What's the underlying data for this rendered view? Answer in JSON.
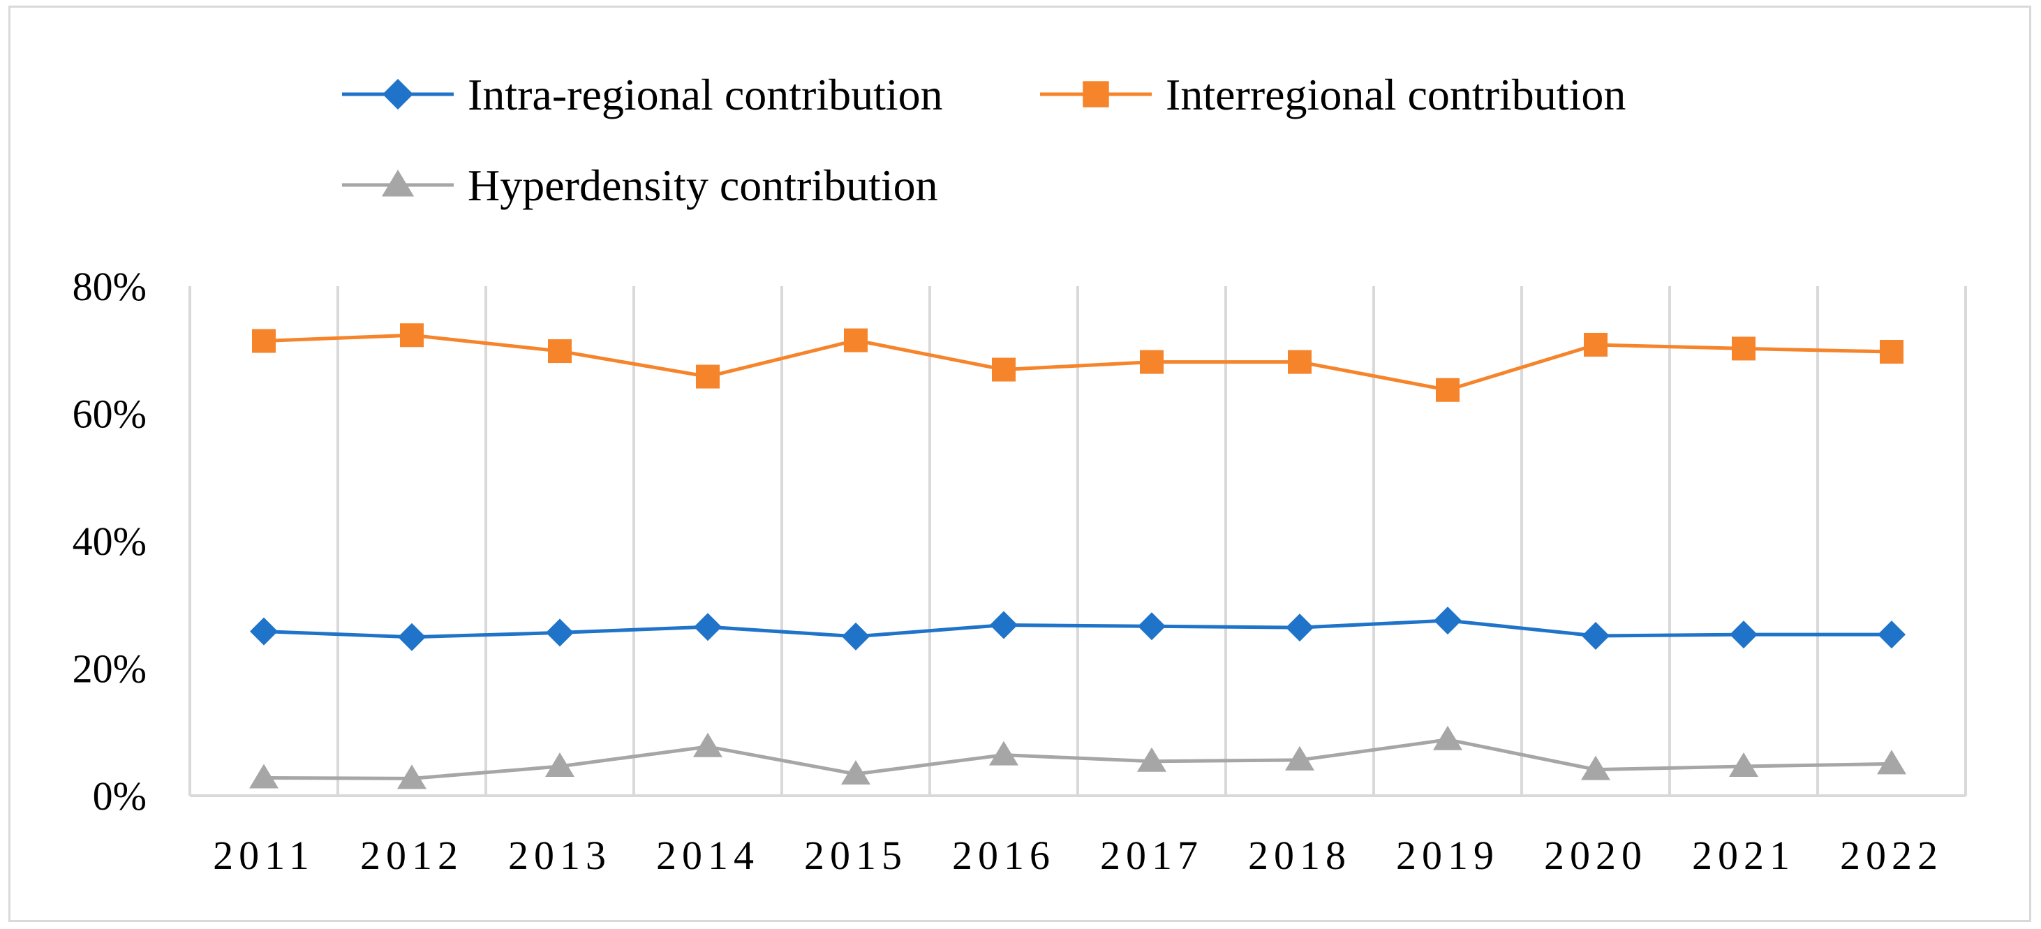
{
  "chart_data": {
    "type": "line",
    "title": "",
    "xlabel": "",
    "ylabel": "",
    "categories": [
      "2011",
      "2012",
      "2013",
      "2014",
      "2015",
      "2016",
      "2017",
      "2018",
      "2019",
      "2020",
      "2021",
      "2022"
    ],
    "ylim": [
      0,
      80
    ],
    "yticks": [
      0,
      20,
      40,
      60,
      80
    ],
    "ytick_labels": [
      "0%",
      "20%",
      "40%",
      "60%",
      "80%"
    ],
    "grid": "vertical",
    "legend_position": "top",
    "series": [
      {
        "name": "Intra-regional contribution",
        "color": "#1f73c9",
        "marker": "diamond",
        "values": [
          25.8,
          24.9,
          25.6,
          26.5,
          25.0,
          26.8,
          26.6,
          26.4,
          27.5,
          25.1,
          25.3,
          25.3
        ]
      },
      {
        "name": "Interregional contribution",
        "color": "#f5842b",
        "marker": "square",
        "values": [
          71.4,
          72.3,
          69.8,
          65.8,
          71.5,
          66.9,
          68.1,
          68.1,
          63.7,
          70.8,
          70.2,
          69.7
        ]
      },
      {
        "name": "Hyperdensity contribution",
        "color": "#a6a6a6",
        "marker": "triangle",
        "values": [
          2.8,
          2.7,
          4.6,
          7.7,
          3.4,
          6.4,
          5.4,
          5.6,
          8.8,
          4.1,
          4.6,
          5.0
        ]
      }
    ]
  }
}
